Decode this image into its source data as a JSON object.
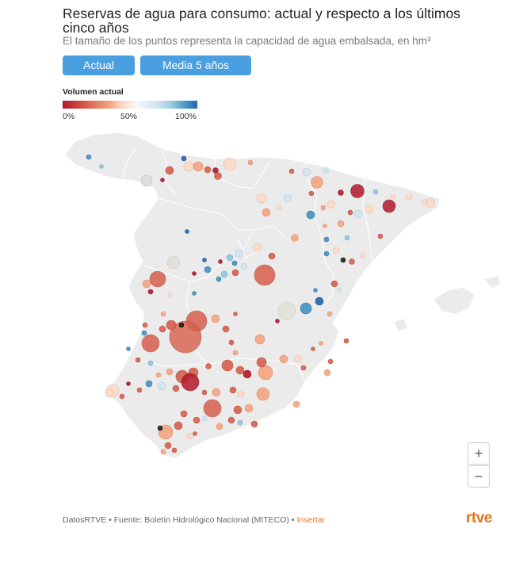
{
  "title": "Reservas de agua para consumo: actual y respecto a los últimos cinco años",
  "subtitle": "El tamaño de los puntos representa la capacidad de agua embalsada, en hm³",
  "buttons": {
    "actual": "Actual",
    "media": "Media 5 años"
  },
  "legend": {
    "title": "Volumen actual",
    "min": "0%",
    "mid": "50%",
    "max": "100%"
  },
  "zoom": {
    "in": "+",
    "out": "−"
  },
  "footer": {
    "source": "DatosRTVE • Fuente: Boletín Hidrológico Nacional (MITECO) • ",
    "insertar": "Insertar"
  },
  "logo": "rtve",
  "colors": {
    "low": "#b2182b",
    "mid": "#f7f7f7",
    "high": "#2166ac",
    "button": "#4a9fe0",
    "brand": "#e8731d"
  }
}
